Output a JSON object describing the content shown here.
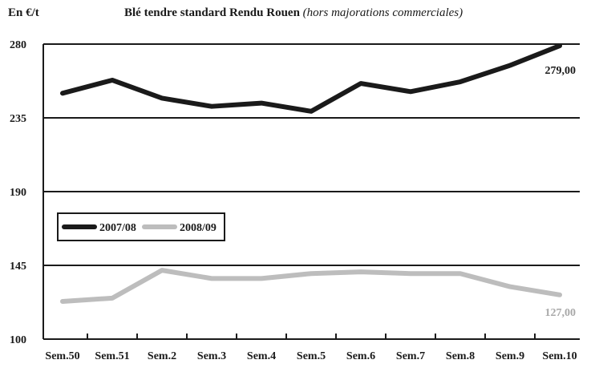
{
  "chart_data": {
    "type": "line",
    "unit_label": "En €/t",
    "title": "Blé tendre standard Rendu Rouen",
    "subtitle": "(hors majorations commerciales)",
    "categories": [
      "Sem.50",
      "Sem.51",
      "Sem.2",
      "Sem.3",
      "Sem.4",
      "Sem.5",
      "Sem.6",
      "Sem.7",
      "Sem.8",
      "Sem.9",
      "Sem.10"
    ],
    "series": [
      {
        "name": "2007/08",
        "color": "#1a1a1a",
        "values": [
          250,
          258,
          247,
          242,
          244,
          239,
          256,
          251,
          257,
          267,
          279
        ]
      },
      {
        "name": "2008/09",
        "color": "#bdbdbd",
        "values": [
          123,
          125,
          142,
          137,
          137,
          140,
          141,
          140,
          140,
          132,
          127
        ]
      }
    ],
    "end_labels": [
      "279,00",
      "127,00"
    ],
    "yticks": [
      "100",
      "145",
      "190",
      "235",
      "280"
    ],
    "ylim": [
      100,
      280
    ],
    "grid": true,
    "legend_position": "left-middle"
  }
}
